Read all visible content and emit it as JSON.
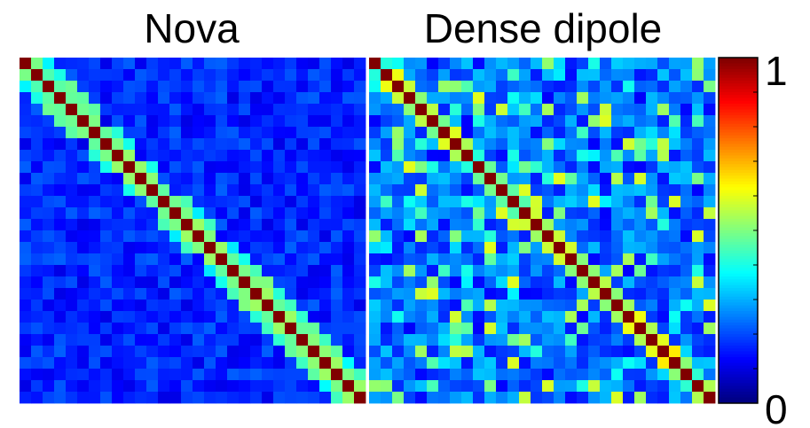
{
  "chart_data": [
    {
      "type": "heatmap",
      "title": "Nova",
      "size": 30,
      "vmin": 0,
      "vmax": 1,
      "colormap": "jet",
      "description_values": "diagonal = 1; near-diagonal blocks ~0.45; background ~0.1-0.2"
    },
    {
      "type": "heatmap",
      "title": "Dense dipole",
      "size": 30,
      "vmin": 0,
      "vmax": 1,
      "colormap": "jet",
      "description_values": "diagonal = 1; scattered off-diagonal values 0.2-0.6"
    }
  ],
  "colorbar": {
    "min_label": "0",
    "max_label": "1",
    "ticks": 11
  }
}
